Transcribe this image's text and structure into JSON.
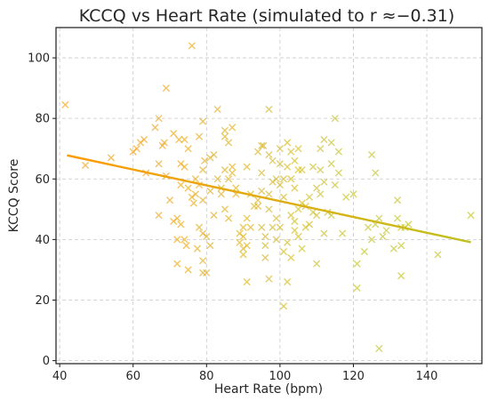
{
  "chart_data": {
    "type": "scatter",
    "title": "KCCQ vs Heart Rate (simulated to r ≈−0.31)",
    "xlabel": "Heart Rate (bpm)",
    "ylabel": "KCCQ Score",
    "xlim": [
      39,
      155
    ],
    "ylim": [
      -1,
      110
    ],
    "xticks": [
      40,
      60,
      80,
      100,
      120,
      140
    ],
    "yticks": [
      0,
      20,
      40,
      60,
      80,
      100
    ],
    "grid": true,
    "marker": "x",
    "colors": {
      "points_low_hr": "#f5a623",
      "points_high_hr": "#c8c832",
      "fit_line_start": "#ff9900",
      "fit_line_end": "#c0c020"
    },
    "points": [
      [
        41.5,
        84.5
      ],
      [
        47,
        64.5
      ],
      [
        54,
        67
      ],
      [
        60,
        69
      ],
      [
        61,
        70
      ],
      [
        62,
        72
      ],
      [
        63,
        73
      ],
      [
        63.5,
        62
      ],
      [
        66,
        77
      ],
      [
        67,
        80
      ],
      [
        68,
        71
      ],
      [
        68.5,
        72
      ],
      [
        69,
        90
      ],
      [
        69,
        61
      ],
      [
        67,
        65
      ],
      [
        67,
        48
      ],
      [
        70,
        53
      ],
      [
        71,
        75
      ],
      [
        71,
        46
      ],
      [
        72,
        47
      ],
      [
        72.5,
        73
      ],
      [
        73,
        65
      ],
      [
        73,
        58
      ],
      [
        73,
        45
      ],
      [
        74,
        73
      ],
      [
        74,
        64
      ],
      [
        72,
        40
      ],
      [
        72,
        32
      ],
      [
        74,
        40
      ],
      [
        74.5,
        38
      ],
      [
        75,
        70
      ],
      [
        75,
        30
      ],
      [
        75,
        57
      ],
      [
        76,
        104
      ],
      [
        76,
        54
      ],
      [
        76.5,
        52
      ],
      [
        77,
        60
      ],
      [
        77,
        55
      ],
      [
        77.5,
        37
      ],
      [
        78,
        74
      ],
      [
        78,
        58
      ],
      [
        78,
        44
      ],
      [
        79,
        79
      ],
      [
        79,
        63
      ],
      [
        79.5,
        66
      ],
      [
        79,
        53
      ],
      [
        79,
        42
      ],
      [
        79,
        33
      ],
      [
        79,
        29
      ],
      [
        80,
        29
      ],
      [
        80,
        41
      ],
      [
        81,
        67
      ],
      [
        81,
        56
      ],
      [
        81,
        38
      ],
      [
        82,
        68
      ],
      [
        82,
        48
      ],
      [
        83,
        83
      ],
      [
        83,
        60
      ],
      [
        84,
        57
      ],
      [
        84,
        55
      ],
      [
        85,
        74
      ],
      [
        85,
        76
      ],
      [
        85,
        63
      ],
      [
        85,
        50
      ],
      [
        86,
        72
      ],
      [
        86,
        60
      ],
      [
        86,
        47
      ],
      [
        87,
        77
      ],
      [
        87,
        64
      ],
      [
        87,
        62
      ],
      [
        88,
        57
      ],
      [
        88,
        55
      ],
      [
        89,
        42
      ],
      [
        89,
        39
      ],
      [
        90,
        44
      ],
      [
        90,
        41
      ],
      [
        90,
        37
      ],
      [
        90,
        35
      ],
      [
        91,
        64
      ],
      [
        91,
        47
      ],
      [
        91,
        38
      ],
      [
        91,
        26
      ],
      [
        92,
        55
      ],
      [
        92,
        44
      ],
      [
        93,
        51
      ],
      [
        94,
        69
      ],
      [
        94,
        53
      ],
      [
        94,
        51
      ],
      [
        95,
        71
      ],
      [
        95,
        62
      ],
      [
        95,
        56
      ],
      [
        95,
        44
      ],
      [
        95.5,
        71
      ],
      [
        96,
        41
      ],
      [
        96,
        38
      ],
      [
        96,
        34
      ],
      [
        97,
        83
      ],
      [
        97,
        68
      ],
      [
        97,
        55
      ],
      [
        97,
        50
      ],
      [
        97,
        27
      ],
      [
        98,
        66
      ],
      [
        98,
        59
      ],
      [
        98,
        44
      ],
      [
        99,
        60
      ],
      [
        99,
        47
      ],
      [
        99,
        40
      ],
      [
        100,
        70
      ],
      [
        100,
        65
      ],
      [
        100,
        58
      ],
      [
        100,
        44
      ],
      [
        101,
        60
      ],
      [
        101,
        54
      ],
      [
        101,
        36
      ],
      [
        101,
        18
      ],
      [
        102,
        72
      ],
      [
        102,
        64
      ],
      [
        102,
        39
      ],
      [
        102,
        26
      ],
      [
        103,
        69
      ],
      [
        103,
        60
      ],
      [
        103,
        48
      ],
      [
        103,
        34
      ],
      [
        104,
        66
      ],
      [
        104,
        57
      ],
      [
        104,
        46
      ],
      [
        104,
        43
      ],
      [
        105,
        70
      ],
      [
        105,
        63
      ],
      [
        105,
        50
      ],
      [
        105,
        41
      ],
      [
        106,
        63
      ],
      [
        106,
        52
      ],
      [
        106,
        37
      ],
      [
        107,
        51
      ],
      [
        107,
        44
      ],
      [
        108,
        54
      ],
      [
        108,
        45
      ],
      [
        109,
        64
      ],
      [
        109,
        49
      ],
      [
        110,
        57
      ],
      [
        110,
        48
      ],
      [
        110,
        32
      ],
      [
        111,
        70
      ],
      [
        111,
        63
      ],
      [
        111,
        55
      ],
      [
        112,
        73
      ],
      [
        112,
        59
      ],
      [
        112,
        42
      ],
      [
        113,
        49
      ],
      [
        114,
        72
      ],
      [
        114,
        65
      ],
      [
        114,
        48
      ],
      [
        115,
        80
      ],
      [
        115,
        58
      ],
      [
        116,
        62
      ],
      [
        116,
        69
      ],
      [
        117,
        42
      ],
      [
        118,
        54
      ],
      [
        120,
        55
      ],
      [
        121,
        24
      ],
      [
        121,
        32
      ],
      [
        123,
        36
      ],
      [
        124,
        44
      ],
      [
        125,
        68
      ],
      [
        125,
        40
      ],
      [
        126,
        62
      ],
      [
        126,
        45
      ],
      [
        127,
        47
      ],
      [
        127,
        4
      ],
      [
        128,
        41
      ],
      [
        129,
        43
      ],
      [
        131,
        37
      ],
      [
        132,
        53
      ],
      [
        132,
        47
      ],
      [
        133,
        44
      ],
      [
        133,
        38
      ],
      [
        133,
        28
      ],
      [
        134,
        44
      ],
      [
        135,
        45
      ],
      [
        143,
        35
      ],
      [
        152,
        48
      ]
    ],
    "fit_line": {
      "x": [
        42,
        152
      ],
      "y": [
        67.8,
        39.1
      ]
    }
  }
}
